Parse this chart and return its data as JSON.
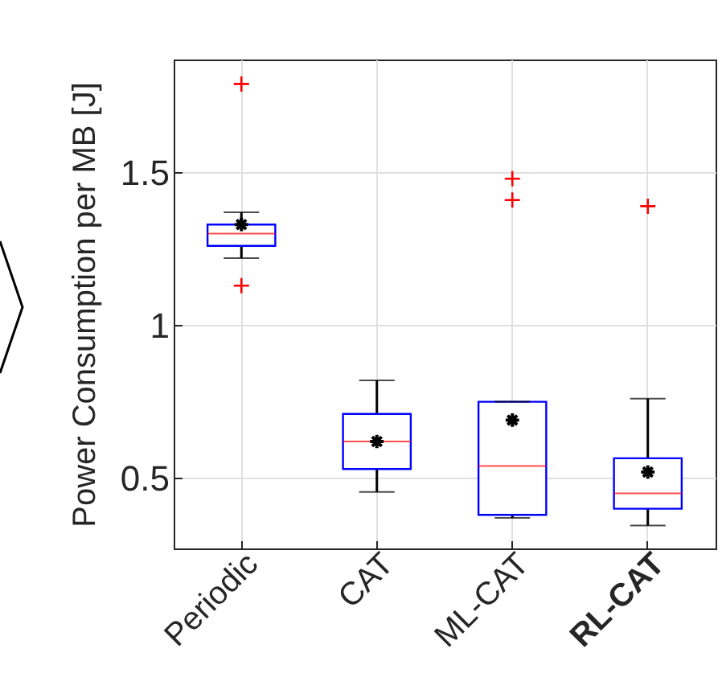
{
  "chart_data": {
    "type": "box",
    "categories": [
      "Periodic",
      "CAT",
      "ML-CAT",
      "RL-CAT"
    ],
    "boxes": [
      {
        "low": 1.22,
        "q1": 1.26,
        "median": 1.3,
        "q3": 1.33,
        "high": 1.37,
        "mean": 1.33,
        "outliers": [
          1.79,
          1.13
        ]
      },
      {
        "low": 0.455,
        "q1": 0.53,
        "median": 0.62,
        "q3": 0.71,
        "high": 0.82,
        "mean": 0.62
      },
      {
        "low": 0.37,
        "q1": 0.38,
        "median": 0.54,
        "q3": 0.75,
        "high": 0.75,
        "mean": 0.69,
        "outliers": [
          1.48,
          1.41
        ]
      },
      {
        "low": 0.345,
        "q1": 0.4,
        "median": 0.45,
        "q3": 0.565,
        "high": 0.76,
        "mean": 0.52,
        "outliers": [
          1.39
        ]
      }
    ],
    "ylabel": "Power Consumption per MB [J]",
    "ylim": [
      0.27,
      1.87
    ],
    "yticks": [
      0.5,
      1,
      1.5
    ],
    "grid": true
  }
}
